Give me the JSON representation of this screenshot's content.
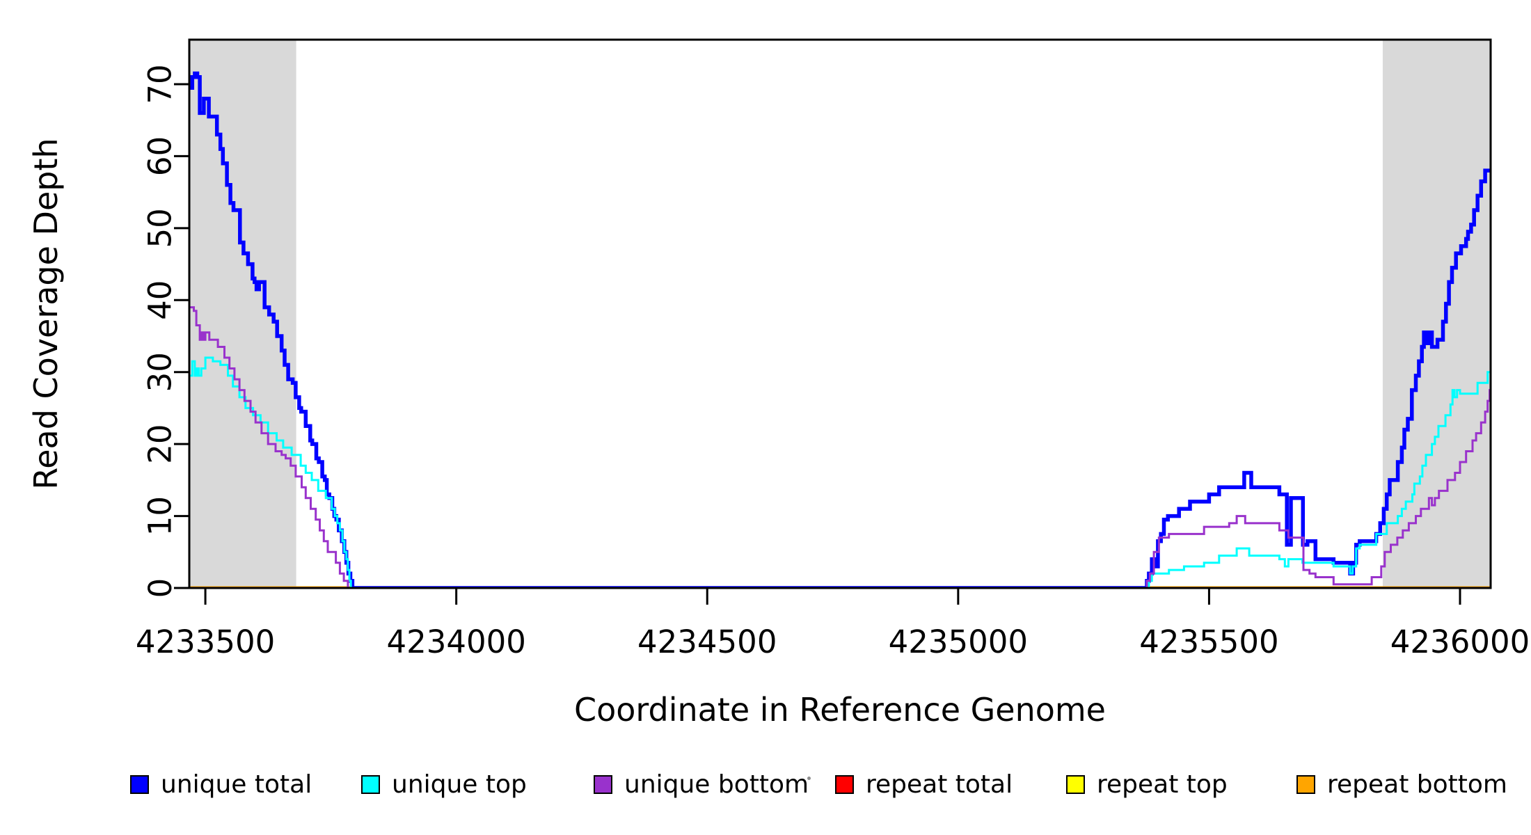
{
  "figure": {
    "background": "#FFFFFF",
    "plot_box_color": "#000000",
    "shaded_band_color": "#D9D9D9"
  },
  "chart_data": {
    "type": "line",
    "subtype": "step-coverage",
    "title": "",
    "xlabel": "Coordinate in Reference Genome",
    "ylabel": "Read Coverage Depth",
    "xlim": [
      4233468,
      4236061
    ],
    "ylim": [
      0,
      76
    ],
    "x_ticks": [
      4233500,
      4234000,
      4234500,
      4235000,
      4235500,
      4236000
    ],
    "y_ticks": [
      0,
      10,
      20,
      30,
      40,
      50,
      60,
      70
    ],
    "grid": "off",
    "legend_position": "bottom",
    "shaded_regions": [
      {
        "x1": 4233468,
        "x2": 4233681,
        "color": "#D9D9D9"
      },
      {
        "x1": 4235846,
        "x2": 4236061,
        "color": "#D9D9D9"
      }
    ],
    "series": [
      {
        "name": "repeat total",
        "color": "#FF0000",
        "width": 3,
        "points": [
          [
            4233468,
            0
          ]
        ]
      },
      {
        "name": "repeat top",
        "color": "#FFFF00",
        "width": 3,
        "points": [
          [
            4233468,
            0
          ]
        ]
      },
      {
        "name": "repeat bottom",
        "color": "#FFA500",
        "width": 5,
        "points": [
          [
            4233468,
            0
          ]
        ]
      },
      {
        "name": "unique total",
        "color": "#0000FF",
        "width": 5.5,
        "points": [
          [
            4233468,
            69.5
          ],
          [
            4233474,
            71
          ],
          [
            4233479,
            71.5
          ],
          [
            4233484,
            71
          ],
          [
            4233489,
            66
          ],
          [
            4233497,
            68
          ],
          [
            4233507,
            65.5
          ],
          [
            4233523,
            63
          ],
          [
            4233530,
            61
          ],
          [
            4233535,
            59
          ],
          [
            4233543,
            56
          ],
          [
            4233550,
            53.5
          ],
          [
            4233556,
            52.5
          ],
          [
            4233569,
            48
          ],
          [
            4233576,
            46.5
          ],
          [
            4233585,
            45
          ],
          [
            4233594,
            43
          ],
          [
            4233598,
            42.5
          ],
          [
            4233602,
            41.5
          ],
          [
            4233607,
            42.5
          ],
          [
            4233618,
            39
          ],
          [
            4233627,
            38
          ],
          [
            4233636,
            37
          ],
          [
            4233643,
            35
          ],
          [
            4233652,
            33
          ],
          [
            4233658,
            31
          ],
          [
            4233665,
            29
          ],
          [
            4233674,
            28.5
          ],
          [
            4233680,
            26.5
          ],
          [
            4233687,
            25
          ],
          [
            4233691,
            24.5
          ],
          [
            4233700,
            22.5
          ],
          [
            4233709,
            20.5
          ],
          [
            4233713,
            20
          ],
          [
            4233721,
            18
          ],
          [
            4233726,
            17.5
          ],
          [
            4233733,
            15.5
          ],
          [
            4233738,
            15
          ],
          [
            4233742,
            13
          ],
          [
            4233747,
            12.5
          ],
          [
            4233753,
            11
          ],
          [
            4233757,
            10
          ],
          [
            4233761,
            9.5
          ],
          [
            4233766,
            8
          ],
          [
            4233772,
            6.5
          ],
          [
            4233777,
            5
          ],
          [
            4233781,
            3.5
          ],
          [
            4233785,
            2
          ],
          [
            4233789,
            1
          ],
          [
            4233793,
            0
          ],
          [
            4235376,
            1
          ],
          [
            4235380,
            2
          ],
          [
            4235386,
            4
          ],
          [
            4235392,
            3
          ],
          [
            4235398,
            6.5
          ],
          [
            4235404,
            7.5
          ],
          [
            4235410,
            9.5
          ],
          [
            4235418,
            10
          ],
          [
            4235440,
            11
          ],
          [
            4235462,
            12
          ],
          [
            4235500,
            13
          ],
          [
            4235520,
            14
          ],
          [
            4235570,
            16
          ],
          [
            4235584,
            14
          ],
          [
            4235640,
            13
          ],
          [
            4235655,
            6
          ],
          [
            4235663,
            12.5
          ],
          [
            4235687,
            6
          ],
          [
            4235696,
            6.5
          ],
          [
            4235712,
            4
          ],
          [
            4235748,
            3.5
          ],
          [
            4235781,
            2
          ],
          [
            4235787,
            3.5
          ],
          [
            4235793,
            6
          ],
          [
            4235800,
            6.5
          ],
          [
            4235833,
            7.5
          ],
          [
            4235841,
            9
          ],
          [
            4235848,
            11
          ],
          [
            4235854,
            13
          ],
          [
            4235860,
            15
          ],
          [
            4235876,
            17.5
          ],
          [
            4235884,
            19.5
          ],
          [
            4235889,
            22
          ],
          [
            4235896,
            23.5
          ],
          [
            4235904,
            27.5
          ],
          [
            4235912,
            29.5
          ],
          [
            4235918,
            31.5
          ],
          [
            4235924,
            33.5
          ],
          [
            4235928,
            35.5
          ],
          [
            4235934,
            34
          ],
          [
            4235938,
            35.5
          ],
          [
            4235944,
            33.5
          ],
          [
            4235955,
            34.5
          ],
          [
            4235966,
            37
          ],
          [
            4235972,
            39.5
          ],
          [
            4235978,
            42.5
          ],
          [
            4235984,
            44.5
          ],
          [
            4235992,
            46.5
          ],
          [
            4236002,
            47.5
          ],
          [
            4236012,
            48.5
          ],
          [
            4236016,
            49.5
          ],
          [
            4236022,
            50.5
          ],
          [
            4236028,
            52.5
          ],
          [
            4236035,
            54.5
          ],
          [
            4236042,
            56.5
          ],
          [
            4236050,
            58
          ]
        ]
      },
      {
        "name": "unique top",
        "color": "#00FFFF",
        "width": 3,
        "points": [
          [
            4233468,
            29.5
          ],
          [
            4233474,
            31.5
          ],
          [
            4233479,
            29.5
          ],
          [
            4233483,
            30.5
          ],
          [
            4233487,
            29.5
          ],
          [
            4233492,
            30.5
          ],
          [
            4233500,
            32
          ],
          [
            4233515,
            31.5
          ],
          [
            4233530,
            31
          ],
          [
            4233545,
            29.5
          ],
          [
            4233555,
            28
          ],
          [
            4233568,
            26.5
          ],
          [
            4233580,
            25
          ],
          [
            4233595,
            24
          ],
          [
            4233610,
            23
          ],
          [
            4233625,
            21.5
          ],
          [
            4233642,
            20.5
          ],
          [
            4233655,
            19.5
          ],
          [
            4233672,
            18.5
          ],
          [
            4233690,
            17
          ],
          [
            4233700,
            16
          ],
          [
            4233712,
            15
          ],
          [
            4233725,
            13.5
          ],
          [
            4233740,
            12.5
          ],
          [
            4233752,
            11
          ],
          [
            4233758,
            10
          ],
          [
            4233763,
            9
          ],
          [
            4233768,
            8
          ],
          [
            4233773,
            6.5
          ],
          [
            4233777,
            5
          ],
          [
            4233781,
            4
          ],
          [
            4233784,
            2.5
          ],
          [
            4233787,
            1
          ],
          [
            4233790,
            0
          ],
          [
            4235380,
            1
          ],
          [
            4235386,
            2
          ],
          [
            4235420,
            2.5
          ],
          [
            4235450,
            3
          ],
          [
            4235490,
            3.5
          ],
          [
            4235520,
            4.5
          ],
          [
            4235555,
            5.5
          ],
          [
            4235580,
            4.5
          ],
          [
            4235640,
            4
          ],
          [
            4235651,
            3
          ],
          [
            4235658,
            4
          ],
          [
            4235686,
            3.5
          ],
          [
            4235748,
            3
          ],
          [
            4235781,
            2
          ],
          [
            4235786,
            3
          ],
          [
            4235793,
            5.5
          ],
          [
            4235800,
            6
          ],
          [
            4235833,
            7.5
          ],
          [
            4235854,
            9
          ],
          [
            4235876,
            10
          ],
          [
            4235884,
            11
          ],
          [
            4235892,
            12
          ],
          [
            4235905,
            13
          ],
          [
            4235909,
            14.5
          ],
          [
            4235920,
            15.5
          ],
          [
            4235925,
            17
          ],
          [
            4235932,
            18.5
          ],
          [
            4235944,
            20
          ],
          [
            4235950,
            21
          ],
          [
            4235957,
            22.5
          ],
          [
            4235971,
            24
          ],
          [
            4235981,
            25.5
          ],
          [
            4235985,
            27.5
          ],
          [
            4235989,
            26.5
          ],
          [
            4235994,
            27.5
          ],
          [
            4236000,
            27
          ],
          [
            4236035,
            28.5
          ],
          [
            4236055,
            30
          ]
        ]
      },
      {
        "name": "unique bottom",
        "color": "#9932CC",
        "width": 3,
        "points": [
          [
            4233468,
            39
          ],
          [
            4233477,
            38.5
          ],
          [
            4233482,
            36.5
          ],
          [
            4233489,
            34.5
          ],
          [
            4233492,
            35.5
          ],
          [
            4233496,
            34.5
          ],
          [
            4233500,
            35.5
          ],
          [
            4233508,
            34.5
          ],
          [
            4233525,
            33.5
          ],
          [
            4233538,
            32
          ],
          [
            4233548,
            30.5
          ],
          [
            4233558,
            29
          ],
          [
            4233568,
            27.5
          ],
          [
            4233578,
            26
          ],
          [
            4233590,
            24.5
          ],
          [
            4233600,
            23
          ],
          [
            4233612,
            21.5
          ],
          [
            4233625,
            20
          ],
          [
            4233640,
            19
          ],
          [
            4233652,
            18.5
          ],
          [
            4233660,
            18
          ],
          [
            4233670,
            17
          ],
          [
            4233680,
            15.5
          ],
          [
            4233692,
            14
          ],
          [
            4233700,
            12.5
          ],
          [
            4233710,
            11
          ],
          [
            4233720,
            9.5
          ],
          [
            4233728,
            8
          ],
          [
            4233736,
            6.5
          ],
          [
            4233744,
            5
          ],
          [
            4233760,
            3.5
          ],
          [
            4233768,
            2
          ],
          [
            4233776,
            1
          ],
          [
            4233784,
            0
          ],
          [
            4235376,
            1
          ],
          [
            4235382,
            2
          ],
          [
            4235390,
            5
          ],
          [
            4235400,
            7
          ],
          [
            4235420,
            7.5
          ],
          [
            4235490,
            8.5
          ],
          [
            4235540,
            9
          ],
          [
            4235555,
            10
          ],
          [
            4235572,
            9
          ],
          [
            4235640,
            8
          ],
          [
            4235658,
            7
          ],
          [
            4235688,
            2.5
          ],
          [
            4235700,
            2
          ],
          [
            4235712,
            1.5
          ],
          [
            4235748,
            0.5
          ],
          [
            4235824,
            1.5
          ],
          [
            4235843,
            3
          ],
          [
            4235850,
            5
          ],
          [
            4235862,
            6
          ],
          [
            4235875,
            7
          ],
          [
            4235886,
            8
          ],
          [
            4235898,
            9
          ],
          [
            4235912,
            10
          ],
          [
            4235922,
            11
          ],
          [
            4235938,
            12.5
          ],
          [
            4235944,
            11.5
          ],
          [
            4235950,
            12.5
          ],
          [
            4235958,
            13.5
          ],
          [
            4235975,
            15
          ],
          [
            4235990,
            16
          ],
          [
            4236000,
            17.5
          ],
          [
            4236012,
            19
          ],
          [
            4236025,
            20.5
          ],
          [
            4236032,
            21.5
          ],
          [
            4236042,
            23
          ],
          [
            4236050,
            24.5
          ],
          [
            4236055,
            26
          ],
          [
            4236059,
            27.5
          ]
        ]
      }
    ]
  },
  "legend": {
    "items": [
      {
        "label": "unique total",
        "color": "#0000FF"
      },
      {
        "label": "unique top",
        "color": "#00FFFF"
      },
      {
        "label": "unique bottom",
        "color": "#9932CC"
      },
      {
        "label": "repeat total",
        "color": "#FF0000"
      },
      {
        "label": "repeat top",
        "color": "#FFFF00"
      },
      {
        "label": "repeat bottom",
        "color": "#FFA500"
      }
    ]
  }
}
